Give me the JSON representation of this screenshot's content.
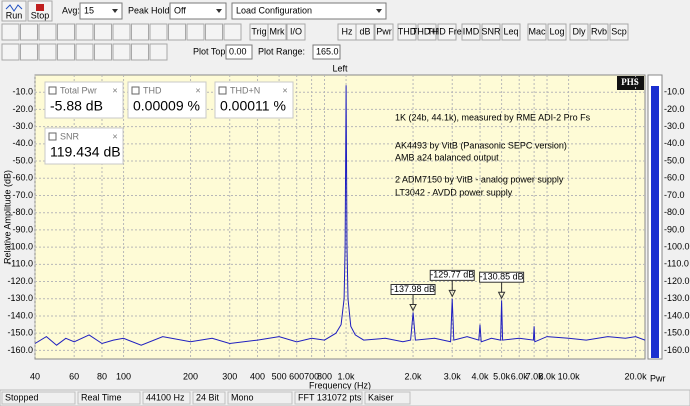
{
  "toolbar": {
    "run": "Run",
    "stop": "Stop",
    "avg_label": "Avg:",
    "avg": "15",
    "peak_hold_label": "Peak Hold:",
    "peak_hold": "Off",
    "config": "Load Configuration",
    "buttons": [
      "Trig",
      "Mrk",
      "I/O",
      "Hz",
      "dB",
      "Pwr",
      "THD",
      "THD+N",
      "THD Freq",
      "IMD",
      "SNR",
      "Leq",
      "Mac",
      "Log",
      "Dly",
      "Rvb",
      "Scp"
    ],
    "plot_top_label": "Plot Top:",
    "plot_top": "0.00",
    "plot_range_label": "Plot Range:",
    "plot_range": "165.0"
  },
  "readouts": [
    {
      "name": "Total Pwr",
      "value": "-5.88 dB"
    },
    {
      "name": "THD",
      "value": "0.00009 %"
    },
    {
      "name": "THD+N",
      "value": "0.00011 %"
    },
    {
      "name": "SNR",
      "value": "119.434 dB"
    }
  ],
  "chart_data": {
    "type": "line",
    "title": "Left",
    "xlabel": "Frequency (Hz)",
    "ylabel": "Relative Amplitude (dB)",
    "y2label": "Pwr",
    "logo": "PHS",
    "log_x": true,
    "grid": true,
    "color": "#1f1fc0",
    "xlim": [
      40,
      22050
    ],
    "ylim": [
      -165,
      0
    ],
    "xticks": [
      40,
      60,
      80,
      100,
      200,
      300,
      400,
      500,
      600,
      700,
      800,
      {
        "value": 1000,
        "label": "1.0k"
      },
      {
        "value": 2000,
        "label": "2.0k"
      },
      {
        "value": 3000,
        "label": "3.0k"
      },
      {
        "value": 4000,
        "label": "4.0k"
      },
      {
        "value": 5000,
        "label": "5.0k"
      },
      {
        "value": 6000,
        "label": "6.0k"
      },
      {
        "value": 7000,
        "label": "7.0k"
      },
      {
        "value": 8000,
        "label": "8.0k"
      },
      {
        "value": 10000,
        "label": "10.0k"
      },
      {
        "value": 20000,
        "label": "20.0k"
      }
    ],
    "yticks": [
      {
        "value": -10,
        "label": "-10.0"
      },
      {
        "value": -20,
        "label": "-20.0"
      },
      {
        "value": -30,
        "label": "-30.0"
      },
      {
        "value": -40,
        "label": "-40.0"
      },
      {
        "value": -50,
        "label": "-50.0"
      },
      {
        "value": -60,
        "label": "-60.0"
      },
      {
        "value": -70,
        "label": "-70.0"
      },
      {
        "value": -80,
        "label": "-80.0"
      },
      {
        "value": -90,
        "label": "-90.0"
      },
      {
        "value": -100,
        "label": "-100.0"
      },
      {
        "value": -110,
        "label": "-110.0"
      },
      {
        "value": -120,
        "label": "-120.0"
      },
      {
        "value": -130,
        "label": "-130.0"
      },
      {
        "value": -140,
        "label": "-140.0"
      },
      {
        "value": -150,
        "label": "-150.0"
      },
      {
        "value": -160,
        "label": "-160.0"
      }
    ],
    "x": [
      40,
      45,
      50,
      55,
      60,
      70,
      80,
      90,
      100,
      120,
      150,
      200,
      250,
      300,
      400,
      500,
      600,
      700,
      800,
      900,
      950,
      980,
      990,
      1000,
      1010,
      1020,
      1050,
      1100,
      1200,
      1500,
      1800,
      1950,
      2000,
      2050,
      2500,
      2950,
      3000,
      3050,
      3500,
      3950,
      4000,
      4050,
      4500,
      4950,
      5000,
      5050,
      6000,
      6950,
      7000,
      7050,
      8000,
      10000,
      12000,
      15000,
      18000,
      20000,
      22050
    ],
    "values": [
      -156,
      -152,
      -157,
      -153,
      -155,
      -151,
      -156,
      -154,
      -153,
      -157,
      -152,
      -155,
      -153,
      -156,
      -154,
      -152,
      -155,
      -153,
      -154,
      -150,
      -145,
      -130,
      -100,
      -6,
      -100,
      -130,
      -146,
      -151,
      -154,
      -153,
      -155,
      -154,
      -138,
      -154,
      -153,
      -155,
      -130,
      -154,
      -152,
      -154,
      -145,
      -155,
      -153,
      -154,
      -131,
      -154,
      -153,
      -154,
      -146,
      -155,
      -152,
      -153,
      -154,
      -152,
      -153,
      -152,
      -154
    ],
    "markers": [
      {
        "x": 2000,
        "value": -137.98,
        "label": "-137.98 dB"
      },
      {
        "x": 3000,
        "value": -129.77,
        "label": "-129.77 dB"
      },
      {
        "x": 5000,
        "value": -130.85,
        "label": "-130.85 dB"
      }
    ],
    "annotations": [
      "1K (24b, 44.1k), measured by RME ADI-2 Pro Fs",
      "AK4493 by VitB (Panasonic SEPC version)",
      "AMB a24 balanced output",
      "2 ADM7150 by VitB - analog power supply",
      "LT3042 - AVDD power supply"
    ]
  },
  "status_bar": [
    "Stopped",
    "Real Time",
    "44100 Hz",
    "24 Bit",
    "Mono",
    "FFT 131072 pts",
    "Kaiser"
  ]
}
